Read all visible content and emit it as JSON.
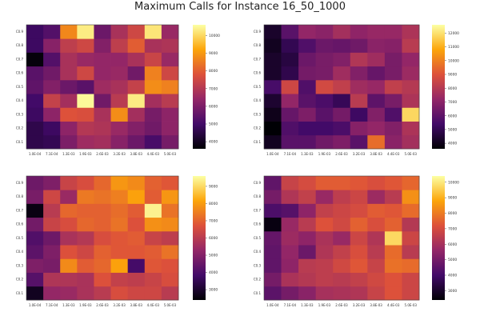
{
  "title": "Maximum Calls for Instance 16_50_1000",
  "colormap": [
    "#000004",
    "#420a68",
    "#932667",
    "#dd513a",
    "#fca50a",
    "#fcffa4"
  ],
  "chart_data": [
    {
      "type": "heatmap",
      "x_tick_labels": [
        "1.0E-04",
        "7.1E-04",
        "1.3E-03",
        "1.9E-03",
        "2.6E-03",
        "3.2E-03",
        "3.8E-03",
        "4.4E-03",
        "5.0E-03"
      ],
      "y_tick_labels": [
        "C0.1",
        "C0.2",
        "C0.3",
        "C0.4",
        "C0.5",
        "C0.6",
        "C0.7",
        "C0.8",
        "C0.9"
      ],
      "colorbar_ticks": [
        4000,
        5000,
        6000,
        7000,
        8000,
        9000,
        10000
      ],
      "zlim": [
        3600,
        10600
      ],
      "values": [
        [
          4600,
          4700,
          6000,
          6600,
          6700,
          6200,
          5700,
          5100,
          5900
        ],
        [
          4600,
          4900,
          6300,
          7000,
          6900,
          6500,
          6100,
          5800,
          6300
        ],
        [
          4900,
          6300,
          7800,
          7700,
          6800,
          8800,
          6700,
          5900,
          6300
        ],
        [
          5000,
          7300,
          6700,
          10500,
          5800,
          7100,
          10300,
          6700,
          7100
        ],
        [
          5500,
          6100,
          5700,
          5400,
          6600,
          6800,
          7300,
          8800,
          8600
        ],
        [
          5400,
          5800,
          6800,
          7500,
          6400,
          6500,
          5800,
          8600,
          7500
        ],
        [
          3700,
          5300,
          6800,
          6500,
          6400,
          6400,
          6800,
          7400,
          6500
        ],
        [
          4900,
          6200,
          7200,
          7500,
          6100,
          7200,
          8000,
          6800,
          6900
        ],
        [
          4900,
          5300,
          8700,
          10300,
          5700,
          6800,
          7500,
          10200,
          6500
        ]
      ]
    },
    {
      "type": "heatmap",
      "x_tick_labels": [
        "1.0E-04",
        "7.1E-04",
        "1.3E-03",
        "1.9E-03",
        "2.6E-03",
        "3.2E-03",
        "3.8E-03",
        "4.4E-03",
        "5.0E-03"
      ],
      "y_tick_labels": [
        "C0.1",
        "C0.2",
        "C0.3",
        "C0.4",
        "C0.5",
        "C0.6",
        "C0.7",
        "C0.8",
        "C0.9"
      ],
      "colorbar_ticks": [
        4000,
        5000,
        6000,
        7000,
        8000,
        9000,
        10000,
        11000,
        12000
      ],
      "zlim": [
        3600,
        12600
      ],
      "values": [
        [
          4100,
          5900,
          5900,
          6400,
          6700,
          5900,
          9600,
          7000,
          7600
        ],
        [
          3600,
          5700,
          5400,
          5400,
          5600,
          6900,
          7200,
          6800,
          7800
        ],
        [
          4000,
          6200,
          6700,
          5900,
          6500,
          5300,
          6800,
          5700,
          11800
        ],
        [
          4400,
          7200,
          5900,
          5600,
          5100,
          8100,
          6000,
          6600,
          7800
        ],
        [
          5500,
          8600,
          5700,
          8700,
          8300,
          7500,
          7300,
          8300,
          8000
        ],
        [
          4300,
          4900,
          6500,
          6600,
          7500,
          6800,
          6200,
          6600,
          7400
        ],
        [
          4300,
          4700,
          6300,
          6600,
          6800,
          7900,
          7500,
          6600,
          7200
        ],
        [
          4100,
          5000,
          5700,
          6300,
          6200,
          6400,
          7000,
          6900,
          8100
        ],
        [
          4300,
          5900,
          7200,
          7000,
          7600,
          7100,
          7300,
          7300,
          7800
        ]
      ]
    },
    {
      "type": "heatmap",
      "x_tick_labels": [
        "1.0E-04",
        "7.1E-04",
        "1.3E-03",
        "1.9E-03",
        "2.6E-03",
        "3.2E-03",
        "3.8E-03",
        "4.4E-03",
        "5.0E-03"
      ],
      "y_tick_labels": [
        "C0.1",
        "C0.2",
        "C0.3",
        "C0.4",
        "C0.5",
        "C0.6",
        "C0.7",
        "C0.8",
        "C0.9"
      ],
      "colorbar_ticks": [
        3000,
        4000,
        5000,
        6000,
        7000,
        8000,
        9000
      ],
      "zlim": [
        2400,
        9600
      ],
      "values": [
        [
          2800,
          5300,
          5400,
          5700,
          6000,
          6600,
          6400,
          6400,
          6000
        ],
        [
          4200,
          5800,
          5800,
          5700,
          6700,
          6200,
          6100,
          6300,
          6600
        ],
        [
          4900,
          4800,
          7700,
          6900,
          7100,
          8100,
          3900,
          6800,
          6700
        ],
        [
          4300,
          4900,
          6700,
          6400,
          7000,
          6800,
          6800,
          6900,
          7300
        ],
        [
          4100,
          4600,
          5700,
          5900,
          6600,
          6800,
          6900,
          6300,
          6100
        ],
        [
          4700,
          6300,
          6600,
          7100,
          7000,
          7300,
          6700,
          7800,
          7700
        ],
        [
          2600,
          6000,
          7100,
          7000,
          7000,
          7200,
          6900,
          9400,
          7300
        ],
        [
          4800,
          6400,
          5400,
          7400,
          7300,
          7500,
          8100,
          6900,
          7900
        ],
        [
          4600,
          4900,
          6300,
          6600,
          7100,
          7900,
          7700,
          7000,
          6800
        ]
      ]
    },
    {
      "type": "heatmap",
      "x_tick_labels": [
        "1.0E-04",
        "7.1E-04",
        "1.3E-03",
        "1.9E-03",
        "2.6E-03",
        "3.2E-03",
        "3.8E-03",
        "4.4E-03",
        "5.0E-03"
      ],
      "y_tick_labels": [
        "C0.1",
        "C0.2",
        "C0.3",
        "C0.4",
        "C0.5",
        "C0.6",
        "C0.7",
        "C0.8",
        "C0.9"
      ],
      "colorbar_ticks": [
        3000,
        4000,
        5000,
        6000,
        7000,
        8000,
        9000,
        10000
      ],
      "zlim": [
        2400,
        10400
      ],
      "values": [
        [
          4500,
          5000,
          5400,
          6000,
          6100,
          6200,
          6700,
          7200,
          6800
        ],
        [
          5000,
          6100,
          6300,
          6500,
          6400,
          6600,
          6900,
          7200,
          6800
        ],
        [
          4600,
          5500,
          6400,
          6500,
          6900,
          7300,
          6700,
          7800,
          7700
        ],
        [
          4600,
          5600,
          4800,
          6200,
          6600,
          7100,
          6400,
          7700,
          6400
        ],
        [
          4700,
          5800,
          5500,
          6100,
          5700,
          6800,
          6200,
          9700,
          6800
        ],
        [
          2600,
          5700,
          6400,
          7200,
          6900,
          7500,
          7100,
          7500,
          6300
        ],
        [
          4200,
          4400,
          5500,
          6600,
          6800,
          7000,
          7400,
          7300,
          7700
        ],
        [
          5000,
          6200,
          6600,
          5700,
          6500,
          6800,
          5800,
          6400,
          8400
        ],
        [
          4600,
          6700,
          7000,
          7400,
          7400,
          7300,
          7100,
          7300,
          7600
        ]
      ]
    }
  ]
}
